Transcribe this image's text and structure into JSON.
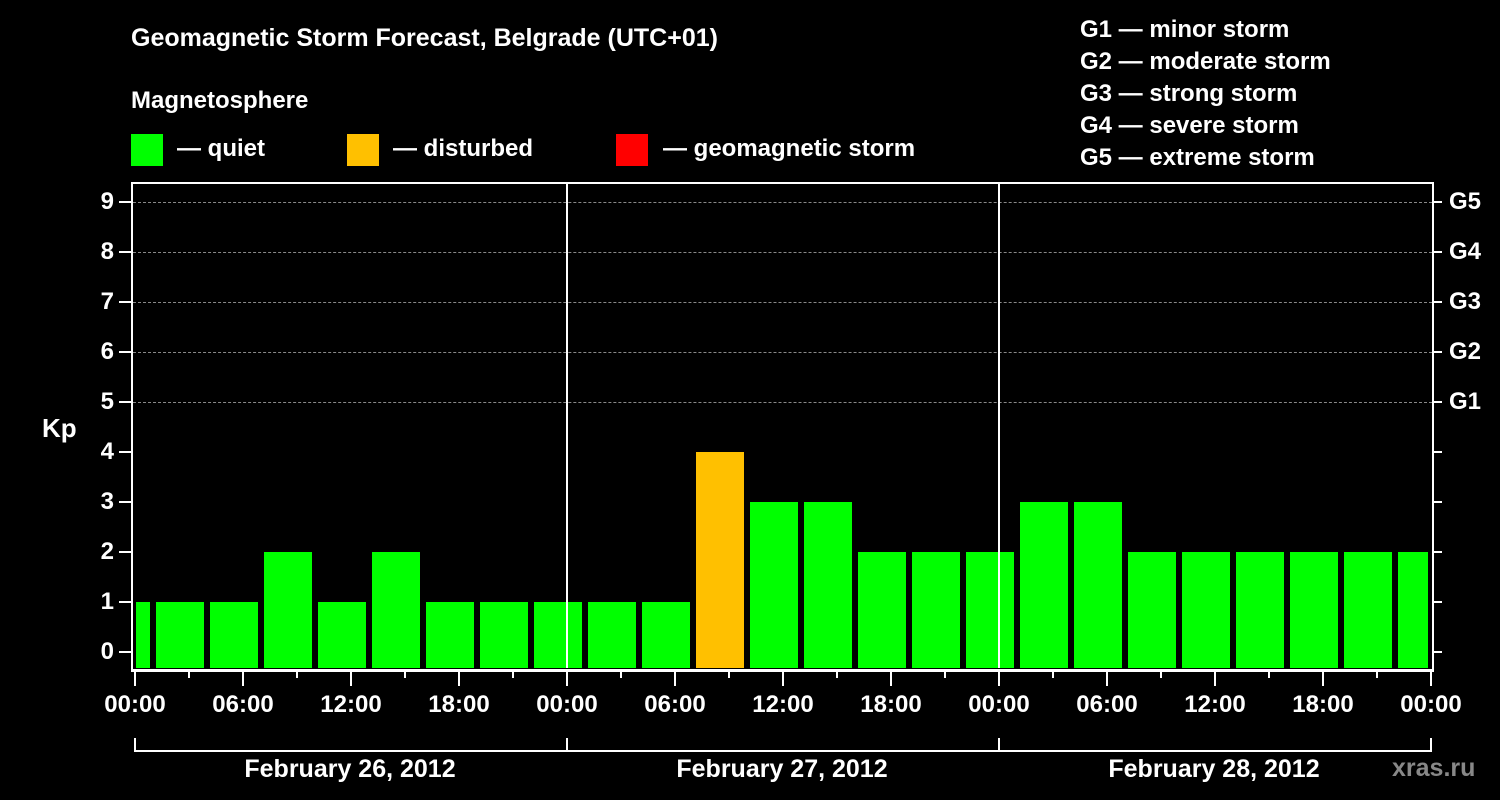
{
  "title": "Geomagnetic Storm Forecast, Belgrade (UTC+01)",
  "subtitle": "Magnetosphere",
  "legend": [
    {
      "color": "#00ff00",
      "label": "— quiet"
    },
    {
      "color": "#ffc000",
      "label": "— disturbed"
    },
    {
      "color": "#ff0000",
      "label": "— geomagnetic storm"
    }
  ],
  "storm_scale": [
    "G1 — minor storm",
    "G2 — moderate storm",
    "G3 — strong storm",
    "G4 — severe storm",
    "G5 — extreme storm"
  ],
  "y_axis_label": "Kp",
  "watermark": "xras.ru",
  "x_tick_labels": [
    "00:00",
    "06:00",
    "12:00",
    "18:00",
    "00:00",
    "06:00",
    "12:00",
    "18:00",
    "00:00",
    "06:00",
    "12:00",
    "18:00",
    "00:00"
  ],
  "dates": [
    "February 26, 2012",
    "February 27, 2012",
    "February 28, 2012"
  ],
  "chart_data": {
    "type": "bar",
    "title": "Geomagnetic Storm Forecast, Belgrade (UTC+01)",
    "xlabel": "",
    "ylabel": "Kp",
    "ylim": [
      0,
      9
    ],
    "y_ticks": [
      0,
      1,
      2,
      3,
      4,
      5,
      6,
      7,
      8,
      9
    ],
    "right_axis_ticks": {
      "5": "G1",
      "6": "G2",
      "7": "G3",
      "8": "G4",
      "9": "G5"
    },
    "grid": "dashed horizontal at Kp 5-9",
    "legend_position": "top",
    "interval_hours": 3,
    "categories": [
      "Feb 26 00:00",
      "Feb 26 03:00",
      "Feb 26 06:00",
      "Feb 26 09:00",
      "Feb 26 12:00",
      "Feb 26 15:00",
      "Feb 26 18:00",
      "Feb 26 21:00",
      "Feb 27 00:00",
      "Feb 27 03:00",
      "Feb 27 06:00",
      "Feb 27 09:00",
      "Feb 27 12:00",
      "Feb 27 15:00",
      "Feb 27 18:00",
      "Feb 27 21:00",
      "Feb 28 00:00",
      "Feb 28 03:00",
      "Feb 28 06:00",
      "Feb 28 09:00",
      "Feb 28 12:00",
      "Feb 28 15:00",
      "Feb 28 18:00",
      "Feb 28 21:00"
    ],
    "leading_partial_bar_value": 1,
    "values": [
      1,
      1,
      2,
      1,
      2,
      1,
      1,
      1,
      1,
      1,
      4,
      3,
      3,
      2,
      2,
      2,
      3,
      3,
      2,
      2,
      2,
      2,
      2,
      2
    ],
    "status": [
      "quiet",
      "quiet",
      "quiet",
      "quiet",
      "quiet",
      "quiet",
      "quiet",
      "quiet",
      "quiet",
      "quiet",
      "disturbed",
      "quiet",
      "quiet",
      "quiet",
      "quiet",
      "quiet",
      "quiet",
      "quiet",
      "quiet",
      "quiet",
      "quiet",
      "quiet",
      "quiet",
      "quiet"
    ],
    "colors": {
      "quiet": "#00ff00",
      "disturbed": "#ffc000",
      "storm": "#ff0000"
    }
  }
}
